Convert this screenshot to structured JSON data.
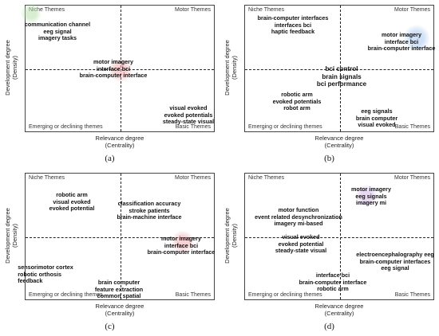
{
  "axes": {
    "x_title": "Relevance degree",
    "x_sub": "(Centrality)",
    "y_title": "Development degree",
    "y_sub": "(Density)"
  },
  "quadrants": {
    "top_left": "Niche Themes",
    "top_right": "Motor Themes",
    "bottom_left": "Emerging or declining themes",
    "bottom_right": "Basic Themes"
  },
  "colors": {
    "green": "#b9dfae",
    "red": "#f2aeb0",
    "blue": "#a9c7ef",
    "purple": "#d4b8e6"
  },
  "panels": [
    {
      "label": "(a)",
      "clusters": [
        {
          "color": "green",
          "lines": [
            "communication channel",
            "eeg signal",
            "imagery tasks"
          ]
        },
        {
          "color": "red",
          "lines": [
            "motor imagery",
            "interface bci",
            "brain-computer interface"
          ]
        },
        {
          "color": "",
          "lines": [
            "visual evoked",
            "evoked potentials",
            "steady-state visual"
          ]
        }
      ]
    },
    {
      "label": "(b)",
      "clusters": [
        {
          "color": "",
          "lines": [
            "brain-computer interfaces",
            "interfaces bci",
            "haptic feedback"
          ]
        },
        {
          "color": "blue",
          "lines": [
            "motor imagery",
            "interface bci",
            "brain-computer interface"
          ]
        },
        {
          "color": "",
          "lines": [
            "bci control",
            "brain signals",
            "bci performance"
          ]
        },
        {
          "color": "",
          "lines": [
            "robotic arm",
            "evoked potentials",
            "robot arm"
          ]
        },
        {
          "color": "",
          "lines": [
            "eeg signals",
            "brain computer",
            "visual evoked"
          ]
        }
      ]
    },
    {
      "label": "(c)",
      "clusters": [
        {
          "color": "",
          "lines": [
            "robotic arm",
            "visual evoked",
            "evoked potential"
          ]
        },
        {
          "color": "",
          "lines": [
            "classification accuracy",
            "stroke patients",
            "brain-machine interface"
          ]
        },
        {
          "color": "red",
          "lines": [
            "motor imagery",
            "interface bci",
            "brain-computer interface"
          ]
        },
        {
          "color": "",
          "lines": [
            "sensorimotor cortex",
            "robotic orthosis",
            "feedback"
          ]
        },
        {
          "color": "",
          "lines": [
            "brain computer",
            "feature extraction",
            "common spatial"
          ]
        }
      ]
    },
    {
      "label": "(d)",
      "clusters": [
        {
          "color": "purple",
          "lines": [
            "motor imagery",
            "eeg signals",
            "imagery mi"
          ]
        },
        {
          "color": "",
          "lines": [
            "motor function",
            "event related desynchronization",
            "imagery mi-based"
          ]
        },
        {
          "color": "",
          "lines": [
            "visual evoked",
            "evoked potential",
            "steady-state visual"
          ]
        },
        {
          "color": "",
          "lines": [
            "electroencephalography eeg",
            "brain-computer interfaces",
            "eeg signal"
          ]
        },
        {
          "color": "",
          "lines": [
            "interface bci",
            "brain-computer interface",
            "robotic arm"
          ]
        }
      ]
    }
  ]
}
